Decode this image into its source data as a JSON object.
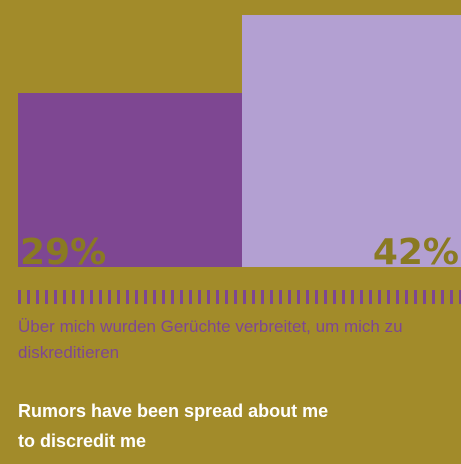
{
  "chart_data": {
    "type": "bar",
    "categories": [
      "",
      ""
    ],
    "values": [
      29,
      42
    ],
    "value_labels": [
      "29%",
      "42%"
    ],
    "colors": [
      "#7e4792",
      "#b3a0d2"
    ],
    "title": "",
    "xlabel": "",
    "ylabel": ""
  },
  "labels": {
    "german": "Über mich wurden Gerüchte verbreitet, um mich zu diskreditieren",
    "english": "Rumors have been spread about me to discredit me"
  },
  "colors": {
    "background": "#a28b2a",
    "label_de": "#7e4792",
    "label_en": "#ffffff"
  }
}
